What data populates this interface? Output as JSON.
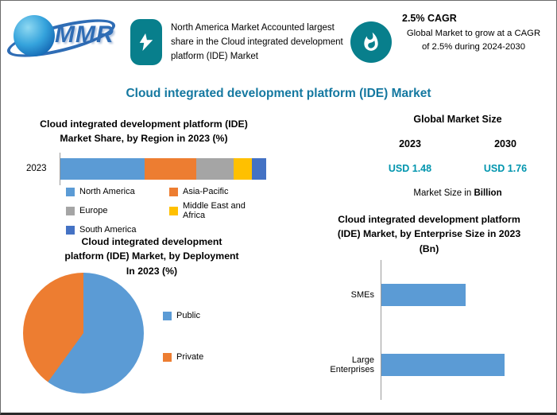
{
  "header": {
    "logo_text": "MMR",
    "share_callout": "North America Market Accounted largest share in the Cloud integrated development platform (IDE) Market",
    "cagr_title": "2.5% CAGR",
    "cagr_text": "Global Market to grow at a CAGR of 2.5% during 2024-2030"
  },
  "main_title": "Cloud integrated development platform (IDE) Market",
  "market_size": {
    "title": "Global Market Size",
    "columns": [
      {
        "year": "2023",
        "value": "USD 1.48"
      },
      {
        "year": "2030",
        "value": "USD 1.76"
      }
    ],
    "note_prefix": "Market Size in ",
    "note_unit": "Billion"
  },
  "colors": {
    "teal": "#087F8C",
    "title": "#1478A0",
    "value": "#0095AE",
    "axis": "#9A9A9A"
  },
  "chart_data": [
    {
      "type": "bar",
      "variant": "stacked-horizontal",
      "title": "Cloud integrated development platform (IDE) Market Share, by Region in 2023 (%)",
      "title_lines": [
        "Cloud integrated development platform (IDE)",
        "Market Share, by Region in 2023 (%)"
      ],
      "categories": [
        "2023"
      ],
      "series": [
        {
          "name": "North America",
          "values": [
            41
          ],
          "color": "#5B9BD5"
        },
        {
          "name": "Asia-Pacific",
          "values": [
            25
          ],
          "color": "#ED7D31"
        },
        {
          "name": "Europe",
          "values": [
            18
          ],
          "color": "#A5A5A5"
        },
        {
          "name": "Middle East and Africa",
          "values": [
            9
          ],
          "color": "#FFC000"
        },
        {
          "name": "South America",
          "values": [
            7
          ],
          "color": "#4472C4"
        }
      ],
      "xlim": [
        0,
        100
      ],
      "legend_position": "bottom"
    },
    {
      "type": "pie",
      "title": "Cloud integrated development platform (IDE) Market, by Deployment In 2023 (%)",
      "title_lines": [
        "Cloud integrated development",
        "platform (IDE) Market, by Deployment",
        "In 2023 (%)"
      ],
      "labels": [
        "Public",
        "Private"
      ],
      "values": [
        60,
        40
      ],
      "colors": [
        "#5B9BD5",
        "#ED7D31"
      ],
      "legend_position": "right"
    },
    {
      "type": "bar",
      "variant": "horizontal",
      "title": "Cloud integrated development platform (IDE) Market, by Enterprise Size in 2023 (Bn)",
      "title_lines": [
        "Cloud integrated development platform",
        "(IDE) Market, by Enterprise Size in 2023",
        "(Bn)"
      ],
      "categories": [
        "SMEs",
        "Large Enterprises"
      ],
      "values": [
        0.6,
        0.88
      ],
      "bar_color": "#5B9BD5",
      "xlim": [
        0,
        1.2
      ]
    }
  ]
}
